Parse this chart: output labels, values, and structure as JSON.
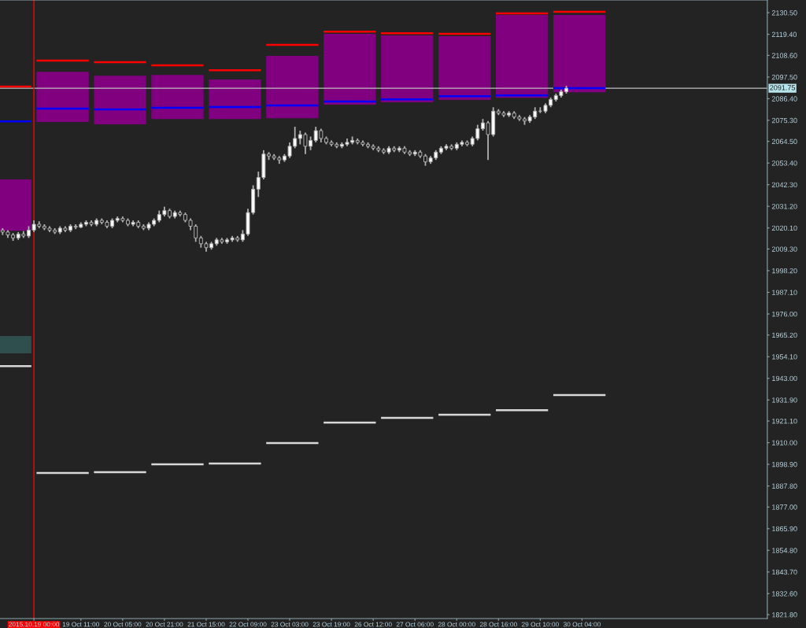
{
  "chart_data": {
    "type": "candlestick",
    "categories": [
      null,
      null,
      null,
      null,
      null,
      null,
      "2015.10.19 00:00",
      null,
      null,
      null,
      null,
      null,
      null,
      null,
      null,
      "19 Oct 11:00",
      null,
      null,
      null,
      null,
      null,
      null,
      null,
      "20 Oct 05:00",
      null,
      null,
      null,
      null,
      null,
      null,
      null,
      "20 Oct 21:00",
      null,
      null,
      null,
      null,
      null,
      null,
      null,
      "21 Oct 15:00",
      null,
      null,
      null,
      null,
      null,
      null,
      null,
      "22 Oct 09:00",
      null,
      null,
      null,
      null,
      null,
      null,
      null,
      "23 Oct 03:00",
      null,
      null,
      null,
      null,
      null,
      null,
      null,
      "23 Oct 19:00",
      null,
      null,
      null,
      null,
      null,
      null,
      null,
      "26 Oct 12:00",
      null,
      null,
      null,
      null,
      null,
      null,
      null,
      "27 Oct 06:00",
      null,
      null,
      null,
      null,
      null,
      null,
      null,
      "28 Oct 00:00",
      null,
      null,
      null,
      null,
      null,
      null,
      null,
      "28 Oct 16:00",
      null,
      null,
      null,
      null,
      null,
      null,
      null,
      "29 Oct 10:00",
      null,
      null,
      null,
      null,
      null,
      null,
      null,
      "30 Oct 04:00",
      null,
      null,
      null,
      null,
      null,
      null,
      null,
      null,
      null,
      null,
      null,
      null,
      null,
      null,
      null,
      null,
      null,
      null,
      null,
      null,
      null,
      null,
      null,
      null,
      null,
      null,
      null,
      null,
      null,
      null,
      null,
      null,
      null,
      null,
      null
    ],
    "ohlc": [
      [
        2019,
        2020,
        2016.5,
        2018
      ],
      [
        2018,
        2019,
        2015,
        2016.5
      ],
      [
        2016.5,
        2017.5,
        2013.5,
        2015
      ],
      [
        2015,
        2018,
        2014,
        2017
      ],
      [
        2017,
        2018.5,
        2015,
        2016
      ],
      [
        2016,
        2021,
        2015,
        2019
      ],
      [
        2019,
        2024,
        2018,
        2022
      ],
      [
        2022,
        2023.5,
        2020,
        2021
      ],
      [
        2021,
        2022,
        2019,
        2020
      ],
      [
        2020,
        2021,
        2018,
        2019
      ],
      [
        2019,
        2020,
        2017,
        2018
      ],
      [
        2018,
        2021,
        2017,
        2020
      ],
      [
        2020,
        2021,
        2018,
        2019
      ],
      [
        2019,
        2022,
        2018,
        2021
      ],
      [
        2021,
        2022,
        2019.5,
        2020.5
      ],
      [
        2020.5,
        2023,
        2020,
        2022
      ],
      [
        2022,
        2024,
        2021,
        2023
      ],
      [
        2023,
        2024,
        2021,
        2022
      ],
      [
        2022,
        2025,
        2021,
        2024
      ],
      [
        2024,
        2025,
        2022,
        2023
      ],
      [
        2023,
        2024,
        2020,
        2021
      ],
      [
        2021,
        2025,
        2020,
        2024
      ],
      [
        2024,
        2026,
        2023,
        2025
      ],
      [
        2025,
        2026,
        2023,
        2024
      ],
      [
        2024,
        2025,
        2021,
        2022
      ],
      [
        2022,
        2024,
        2021,
        2023
      ],
      [
        2023,
        2024,
        2020,
        2021
      ],
      [
        2021,
        2022,
        2019,
        2020
      ],
      [
        2020,
        2023,
        2019,
        2022
      ],
      [
        2022,
        2025,
        2021,
        2024
      ],
      [
        2024,
        2029,
        2023,
        2027
      ],
      [
        2027,
        2031,
        2026,
        2029
      ],
      [
        2029,
        2030,
        2025,
        2026
      ],
      [
        2026,
        2029,
        2025,
        2028
      ],
      [
        2028,
        2029,
        2026,
        2027
      ],
      [
        2027,
        2028,
        2023,
        2024
      ],
      [
        2024,
        2025,
        2019,
        2021
      ],
      [
        2021,
        2022,
        2013,
        2015
      ],
      [
        2015,
        2016,
        2010,
        2012
      ],
      [
        2012,
        2013,
        2008,
        2010
      ],
      [
        2010,
        2013,
        2009,
        2012
      ],
      [
        2012,
        2015,
        2011,
        2014
      ],
      [
        2014,
        2015,
        2012,
        2013
      ],
      [
        2013,
        2015,
        2012,
        2014
      ],
      [
        2014,
        2016,
        2013,
        2015
      ],
      [
        2015,
        2016,
        2013,
        2014
      ],
      [
        2014,
        2019,
        2013,
        2017
      ],
      [
        2017,
        2030,
        2016,
        2028
      ],
      [
        2028,
        2042,
        2027,
        2040
      ],
      [
        2040,
        2049,
        2036,
        2046
      ],
      [
        2046,
        2060,
        2045,
        2058
      ],
      [
        2058,
        2059,
        2055,
        2057
      ],
      [
        2057,
        2058,
        2055,
        2056
      ],
      [
        2056,
        2057,
        2053,
        2055
      ],
      [
        2055,
        2058,
        2054,
        2057
      ],
      [
        2057,
        2064,
        2056,
        2062
      ],
      [
        2062,
        2072,
        2061,
        2066
      ],
      [
        2066,
        2070,
        2063,
        2068
      ],
      [
        2068,
        2069,
        2058,
        2062
      ],
      [
        2062,
        2067,
        2060,
        2065
      ],
      [
        2065,
        2072,
        2064,
        2070
      ],
      [
        2070,
        2071,
        2064,
        2066
      ],
      [
        2066,
        2067,
        2063,
        2064
      ],
      [
        2064,
        2065,
        2062,
        2063
      ],
      [
        2063,
        2064,
        2061,
        2062
      ],
      [
        2062,
        2064,
        2061,
        2063
      ],
      [
        2063,
        2066,
        2062,
        2064
      ],
      [
        2064,
        2067,
        2063,
        2065
      ],
      [
        2065,
        2066,
        2063,
        2064
      ],
      [
        2064,
        2065,
        2062,
        2063
      ],
      [
        2063,
        2064,
        2061,
        2062
      ],
      [
        2062,
        2063,
        2060,
        2061
      ],
      [
        2061,
        2062,
        2059,
        2060
      ],
      [
        2060,
        2061,
        2058,
        2059
      ],
      [
        2059,
        2062,
        2058,
        2061
      ],
      [
        2061,
        2062,
        2059,
        2060
      ],
      [
        2060,
        2062,
        2059,
        2061
      ],
      [
        2061,
        2062,
        2058,
        2059
      ],
      [
        2059,
        2060,
        2057,
        2058
      ],
      [
        2058,
        2060,
        2057,
        2059
      ],
      [
        2059,
        2060,
        2056,
        2057
      ],
      [
        2057,
        2058,
        2052,
        2054
      ],
      [
        2054,
        2057,
        2053,
        2056
      ],
      [
        2056,
        2060,
        2055,
        2059
      ],
      [
        2059,
        2062,
        2058,
        2061
      ],
      [
        2061,
        2063,
        2060,
        2062
      ],
      [
        2062,
        2063,
        2060,
        2061
      ],
      [
        2061,
        2064,
        2060,
        2063
      ],
      [
        2063,
        2065,
        2062,
        2064
      ],
      [
        2064,
        2065,
        2062,
        2063
      ],
      [
        2063,
        2067,
        2062,
        2066
      ],
      [
        2066,
        2073,
        2065,
        2071
      ],
      [
        2071,
        2076,
        2070,
        2074
      ],
      [
        2074,
        2075,
        2055,
        2068
      ],
      [
        2068,
        2082,
        2067,
        2080
      ],
      [
        2080,
        2081,
        2078,
        2079
      ],
      [
        2079,
        2080,
        2077,
        2078
      ],
      [
        2078,
        2080,
        2077,
        2079
      ],
      [
        2079,
        2080,
        2076,
        2077
      ],
      [
        2077,
        2078,
        2075,
        2076
      ],
      [
        2076,
        2077,
        2073,
        2075
      ],
      [
        2075,
        2078,
        2074,
        2077
      ],
      [
        2077,
        2082,
        2076,
        2080
      ],
      [
        2080,
        2082,
        2079,
        2080
      ],
      [
        2080,
        2084,
        2079,
        2083
      ],
      [
        2083,
        2087,
        2082,
        2086
      ],
      [
        2086,
        2089,
        2085,
        2088
      ],
      [
        2088,
        2091,
        2087,
        2090
      ],
      [
        2090,
        2093,
        2089,
        2091.75
      ],
      null,
      null,
      null,
      null,
      null,
      null,
      null,
      null,
      null,
      null,
      null,
      null,
      null,
      null,
      null,
      null,
      null,
      null,
      null,
      null,
      null,
      null,
      null,
      null,
      null,
      null,
      null,
      null,
      null,
      null,
      null,
      null,
      null,
      null,
      null,
      null,
      null,
      null
    ],
    "series": [
      {
        "type": "step",
        "color": "#800080",
        "values": [
          null,
          null,
          null,
          null,
          null,
          null,
          null,
          null,
          null,
          null,
          null,
          null,
          null,
          null,
          null,
          null,
          null,
          null,
          null,
          null,
          null,
          null,
          null,
          null,
          null,
          null,
          null,
          null,
          null,
          null,
          null,
          null,
          null,
          null,
          null,
          null,
          null,
          null,
          null,
          null,
          null,
          null,
          null,
          null,
          null,
          null,
          null,
          null,
          null,
          null,
          null,
          null,
          null,
          null,
          null,
          null,
          null,
          null,
          null,
          null,
          null,
          null,
          null,
          null,
          null,
          null,
          null,
          null,
          null,
          null,
          null,
          null,
          null,
          null,
          null,
          null,
          null,
          null,
          null,
          null,
          null,
          null,
          null,
          null,
          null,
          null,
          null,
          null,
          null,
          null,
          null,
          null,
          null,
          null,
          null,
          null,
          null,
          null,
          null,
          null,
          null,
          null,
          null,
          null,
          null,
          null,
          null,
          null,
          null,
          null,
          null,
          null,
          null,
          null,
          null,
          null,
          null,
          null,
          null,
          null,
          null,
          null,
          null,
          null,
          null,
          null,
          null,
          null,
          null,
          null,
          null,
          null,
          null,
          null,
          null,
          null,
          null,
          null,
          null,
          null,
          null,
          null,
          null,
          null,
          null,
          null,
          null
        ],
        "lower": [
          2018.7,
          2018.7,
          2018.7,
          2018.7,
          2018.7,
          2018.7,
          null,
          2074.4,
          2074.4,
          2074.4,
          2074.4,
          2074.4,
          2074.4,
          2074.4,
          2074.4,
          2074.4,
          2074.4,
          null,
          2073.2,
          2073.2,
          2073.2,
          2073.2,
          2073.2,
          2073.2,
          2073.2,
          2073.2,
          2073.2,
          2073.2,
          null,
          2076.0,
          2076.0,
          2076.0,
          2076.0,
          2076.0,
          2076.0,
          2076.0,
          2076.0,
          2076.0,
          2076.0,
          null,
          2076.0,
          2076.0,
          2076.0,
          2076.0,
          2076.0,
          2076.0,
          2076.0,
          2076.0,
          2076.0,
          2076.0,
          null,
          2076.4,
          2076.4,
          2076.4,
          2076.4,
          2076.4,
          2076.4,
          2076.4,
          2076.4,
          2076.4,
          2076.4,
          null,
          2083.3,
          2083.3,
          2083.3,
          2083.3,
          2083.3,
          2083.3,
          2083.3,
          2083.3,
          2083.3,
          2083.3,
          null,
          2084.5,
          2084.5,
          2084.5,
          2084.5,
          2084.5,
          2084.5,
          2084.5,
          2084.5,
          2084.5,
          2084.5,
          null,
          2085.7,
          2085.7,
          2085.7,
          2085.7,
          2085.7,
          2085.7,
          2085.7,
          2085.7,
          2085.7,
          2085.7,
          null,
          2086.9,
          2086.9,
          2086.9,
          2086.9,
          2086.9,
          2086.9,
          2086.9,
          2086.9,
          2086.9,
          2086.9,
          null,
          2089.7,
          2089.7,
          2089.7,
          2089.7,
          2089.7,
          2089.7,
          2089.7,
          2089.7,
          2089.7,
          2089.7,
          null,
          null,
          null,
          null,
          null,
          null,
          null,
          null,
          null,
          null,
          null,
          null,
          null,
          null,
          null,
          null,
          null,
          null,
          null,
          null,
          null,
          null,
          null,
          null,
          null,
          null,
          null,
          null,
          null,
          null,
          null
        ],
        "upper": [
          2045.0,
          2045.0,
          2045.0,
          2045.0,
          2045.0,
          2045.0,
          null,
          2100.2,
          2100.2,
          2100.2,
          2100.2,
          2100.2,
          2100.2,
          2100.2,
          2100.2,
          2100.2,
          2100.2,
          null,
          2098.2,
          2098.2,
          2098.2,
          2098.2,
          2098.2,
          2098.2,
          2098.2,
          2098.2,
          2098.2,
          2098.2,
          null,
          2098.6,
          2098.6,
          2098.6,
          2098.6,
          2098.6,
          2098.6,
          2098.6,
          2098.6,
          2098.6,
          2098.6,
          null,
          2096.2,
          2096.2,
          2096.2,
          2096.2,
          2096.2,
          2096.2,
          2096.2,
          2096.2,
          2096.2,
          2096.2,
          null,
          2108.3,
          2108.3,
          2108.3,
          2108.3,
          2108.3,
          2108.3,
          2108.3,
          2108.3,
          2108.3,
          2108.3,
          null,
          2119.6,
          2119.6,
          2119.6,
          2119.6,
          2119.6,
          2119.6,
          2119.6,
          2119.6,
          2119.6,
          2119.6,
          null,
          2118.8,
          2118.8,
          2118.8,
          2118.8,
          2118.8,
          2118.8,
          2118.8,
          2118.8,
          2118.8,
          2118.8,
          null,
          2118.4,
          2118.4,
          2118.4,
          2118.4,
          2118.4,
          2118.4,
          2118.4,
          2118.4,
          2118.4,
          2118.4,
          null,
          2129.3,
          2129.3,
          2129.3,
          2129.3,
          2129.3,
          2129.3,
          2129.3,
          2129.3,
          2129.3,
          2129.3,
          null,
          2129.3,
          2129.3,
          2129.3,
          2129.3,
          2129.3,
          2129.3,
          2129.3,
          2129.3,
          2129.3,
          2129.3,
          null,
          null,
          null,
          null,
          null,
          null,
          null,
          null,
          null,
          null,
          null,
          null,
          null,
          null,
          null,
          null,
          null,
          null,
          null,
          null,
          null,
          null,
          null,
          null,
          null,
          null,
          null,
          null,
          null,
          null,
          null
        ]
      },
      {
        "type": "step",
        "color": "#2f4f4f",
        "values": [
          null,
          null,
          null,
          null,
          null,
          null,
          null,
          null,
          null,
          null,
          null,
          null,
          null,
          null,
          null,
          null,
          null,
          null,
          null,
          null,
          null,
          null,
          null,
          null,
          null,
          null,
          null,
          null,
          null,
          null,
          null,
          null,
          null,
          null,
          null,
          null,
          null,
          null,
          null,
          null,
          null,
          null,
          null,
          null,
          null,
          null,
          null,
          null,
          null,
          null,
          null,
          null,
          null,
          null,
          null,
          null,
          null,
          null,
          null,
          null,
          null,
          null,
          null,
          null,
          null,
          null,
          null,
          null,
          null,
          null,
          null,
          null,
          null,
          null,
          null,
          null,
          null,
          null,
          null,
          null,
          null,
          null,
          null,
          null,
          null,
          null,
          null,
          null,
          null,
          null,
          null,
          null,
          null,
          null,
          null,
          null,
          null,
          null,
          null,
          null,
          null,
          null,
          null,
          null,
          null,
          null,
          null,
          null,
          null,
          null,
          null,
          null,
          null,
          null,
          null,
          null,
          null,
          null,
          null,
          null,
          null,
          null,
          null,
          null,
          null,
          null,
          null,
          null,
          null,
          null,
          null,
          null,
          null,
          null,
          null,
          null,
          null,
          null,
          null,
          null,
          null,
          null,
          null,
          null,
          null,
          null,
          null
        ],
        "lower": [
          1955.8,
          1955.8,
          1955.8,
          1955.8,
          1955.8,
          1955.8,
          null,
          null,
          null,
          null,
          null,
          null,
          null,
          null,
          null,
          null,
          null,
          null,
          null,
          null,
          null,
          null,
          null,
          null,
          null,
          null,
          null,
          null,
          null,
          null,
          null,
          null,
          null,
          null,
          null,
          null,
          null,
          null,
          null,
          null,
          null,
          null,
          null,
          null,
          null,
          null,
          null,
          null,
          null,
          null,
          null,
          null,
          null,
          null,
          null,
          null,
          null,
          null,
          null,
          null,
          null,
          null,
          null,
          null,
          null,
          null,
          null,
          null,
          null,
          null,
          null,
          null,
          null,
          null,
          null,
          null,
          null,
          null,
          null,
          null,
          null,
          null,
          null,
          null,
          null,
          null,
          null,
          null,
          null,
          null,
          null,
          null,
          null,
          null,
          null,
          null,
          null,
          null,
          null,
          null,
          null,
          null,
          null,
          null,
          null,
          null,
          null,
          null,
          null,
          null,
          null,
          null,
          null,
          null,
          null,
          null,
          null,
          null,
          null,
          null,
          null,
          null,
          null,
          null,
          null,
          null,
          null,
          null,
          null,
          null,
          null,
          null,
          null,
          null,
          null,
          null,
          null,
          null,
          null,
          null,
          null,
          null,
          null,
          null,
          null,
          null,
          null
        ],
        "upper": [
          1964.7,
          1964.7,
          1964.7,
          1964.7,
          1964.7,
          1964.7,
          null,
          null,
          null,
          null,
          null,
          null,
          null,
          null,
          null,
          null,
          null,
          null,
          null,
          null,
          null,
          null,
          null,
          null,
          null,
          null,
          null,
          null,
          null,
          null,
          null,
          null,
          null,
          null,
          null,
          null,
          null,
          null,
          null,
          null,
          null,
          null,
          null,
          null,
          null,
          null,
          null,
          null,
          null,
          null,
          null,
          null,
          null,
          null,
          null,
          null,
          null,
          null,
          null,
          null,
          null,
          null,
          null,
          null,
          null,
          null,
          null,
          null,
          null,
          null,
          null,
          null,
          null,
          null,
          null,
          null,
          null,
          null,
          null,
          null,
          null,
          null,
          null,
          null,
          null,
          null,
          null,
          null,
          null,
          null,
          null,
          null,
          null,
          null,
          null,
          null,
          null,
          null,
          null,
          null,
          null,
          null,
          null,
          null,
          null,
          null,
          null,
          null,
          null,
          null,
          null,
          null,
          null,
          null,
          null,
          null,
          null,
          null,
          null,
          null,
          null,
          null,
          null,
          null,
          null,
          null,
          null,
          null,
          null,
          null,
          null,
          null,
          null,
          null,
          null,
          null,
          null,
          null,
          null,
          null,
          null,
          null,
          null,
          null,
          null,
          null,
          null
        ]
      },
      {
        "type": "step",
        "color": "#ff0000",
        "values": [
          2092.6,
          2092.6,
          2092.6,
          2092.6,
          2092.6,
          2092.6,
          null,
          2105.9,
          2105.9,
          2105.9,
          2105.9,
          2105.9,
          2105.9,
          2105.9,
          2105.9,
          2105.9,
          2105.9,
          null,
          2105.1,
          2105.1,
          2105.1,
          2105.1,
          2105.1,
          2105.1,
          2105.1,
          2105.1,
          2105.1,
          2105.1,
          null,
          2103.5,
          2103.5,
          2103.5,
          2103.5,
          2103.5,
          2103.5,
          2103.5,
          2103.5,
          2103.5,
          2103.5,
          null,
          2101.0,
          2101.0,
          2101.0,
          2101.0,
          2101.0,
          2101.0,
          2101.0,
          2101.0,
          2101.0,
          2101.0,
          null,
          2114.0,
          2114.0,
          2114.0,
          2114.0,
          2114.0,
          2114.0,
          2114.0,
          2114.0,
          2114.0,
          2114.0,
          null,
          2120.8,
          2120.8,
          2120.8,
          2120.8,
          2120.8,
          2120.8,
          2120.8,
          2120.8,
          2120.8,
          2120.8,
          null,
          2120.0,
          2120.0,
          2120.0,
          2120.0,
          2120.0,
          2120.0,
          2120.0,
          2120.0,
          2120.0,
          2120.0,
          null,
          2119.6,
          2119.6,
          2119.6,
          2119.6,
          2119.6,
          2119.6,
          2119.6,
          2119.6,
          2119.6,
          2119.6,
          null,
          2130.1,
          2130.1,
          2130.1,
          2130.1,
          2130.1,
          2130.1,
          2130.1,
          2130.1,
          2130.1,
          2130.1,
          null,
          2130.9,
          2130.9,
          2130.9,
          2130.9,
          2130.9,
          2130.9,
          2130.9,
          2130.9,
          2130.9,
          2130.9,
          null,
          null,
          null,
          null,
          null,
          null,
          null,
          null,
          null,
          null,
          null,
          null,
          null,
          null,
          null,
          null,
          null,
          null,
          null,
          null,
          null,
          null,
          null,
          null,
          null,
          null,
          null,
          null,
          null,
          null,
          null
        ]
      },
      {
        "type": "step",
        "color": "#0000ff",
        "values": [
          2074.8,
          2074.8,
          2074.8,
          2074.8,
          2074.8,
          2074.8,
          null,
          2081.3,
          2081.3,
          2081.3,
          2081.3,
          2081.3,
          2081.3,
          2081.3,
          2081.3,
          2081.3,
          2081.3,
          null,
          2080.9,
          2080.9,
          2080.9,
          2080.9,
          2080.9,
          2080.9,
          2080.9,
          2080.9,
          2080.9,
          2080.9,
          null,
          2081.7,
          2081.7,
          2081.7,
          2081.7,
          2081.7,
          2081.7,
          2081.7,
          2081.7,
          2081.7,
          2081.7,
          null,
          2082.1,
          2082.1,
          2082.1,
          2082.1,
          2082.1,
          2082.1,
          2082.1,
          2082.1,
          2082.1,
          2082.1,
          null,
          2082.9,
          2082.9,
          2082.9,
          2082.9,
          2082.9,
          2082.9,
          2082.9,
          2082.9,
          2082.9,
          2082.9,
          null,
          2084.9,
          2084.9,
          2084.9,
          2084.9,
          2084.9,
          2084.9,
          2084.9,
          2084.9,
          2084.9,
          2084.9,
          null,
          2086.1,
          2086.1,
          2086.1,
          2086.1,
          2086.1,
          2086.1,
          2086.1,
          2086.1,
          2086.1,
          2086.1,
          null,
          2087.7,
          2087.7,
          2087.7,
          2087.7,
          2087.7,
          2087.7,
          2087.7,
          2087.7,
          2087.7,
          2087.7,
          null,
          2088.1,
          2088.1,
          2088.1,
          2088.1,
          2088.1,
          2088.1,
          2088.1,
          2088.1,
          2088.1,
          2088.1,
          null,
          2091.8,
          2091.8,
          2091.8,
          2091.8,
          2091.8,
          2091.8,
          2091.8,
          2091.8,
          2091.8,
          2091.8,
          null,
          null,
          null,
          null,
          null,
          null,
          null,
          null,
          null,
          null,
          null,
          null,
          null,
          null,
          null,
          null,
          null,
          null,
          null,
          null,
          null,
          null,
          null,
          null,
          null,
          null,
          null,
          null,
          null,
          null,
          null
        ]
      },
      {
        "type": "step",
        "color": "#d8d8d8",
        "values": [
          1949.3,
          1949.3,
          1949.3,
          1949.3,
          1949.3,
          1949.3,
          null,
          1894.5,
          1894.5,
          1894.5,
          1894.5,
          1894.5,
          1894.5,
          1894.5,
          1894.5,
          1894.5,
          1894.5,
          null,
          1894.9,
          1894.9,
          1894.9,
          1894.9,
          1894.9,
          1894.9,
          1894.9,
          1894.9,
          1894.9,
          1894.9,
          null,
          1898.9,
          1898.9,
          1898.9,
          1898.9,
          1898.9,
          1898.9,
          1898.9,
          1898.9,
          1898.9,
          1898.9,
          null,
          1899.3,
          1899.3,
          1899.3,
          1899.3,
          1899.3,
          1899.3,
          1899.3,
          1899.3,
          1899.3,
          1899.3,
          null,
          1909.8,
          1909.8,
          1909.8,
          1909.8,
          1909.8,
          1909.8,
          1909.8,
          1909.8,
          1909.8,
          1909.8,
          null,
          1920.3,
          1920.3,
          1920.3,
          1920.3,
          1920.3,
          1920.3,
          1920.3,
          1920.3,
          1920.3,
          1920.3,
          null,
          1922.7,
          1922.7,
          1922.7,
          1922.7,
          1922.7,
          1922.7,
          1922.7,
          1922.7,
          1922.7,
          1922.7,
          null,
          1924.3,
          1924.3,
          1924.3,
          1924.3,
          1924.3,
          1924.3,
          1924.3,
          1924.3,
          1924.3,
          1924.3,
          null,
          1926.7,
          1926.7,
          1926.7,
          1926.7,
          1926.7,
          1926.7,
          1926.7,
          1926.7,
          1926.7,
          1926.7,
          null,
          1934.4,
          1934.4,
          1934.4,
          1934.4,
          1934.4,
          1934.4,
          1934.4,
          1934.4,
          1934.4,
          1934.4,
          null,
          null,
          null,
          null,
          null,
          null,
          null,
          null,
          null,
          null,
          null,
          null,
          null,
          null,
          null,
          null,
          null,
          null,
          null,
          null,
          null,
          null,
          null,
          null,
          null,
          null,
          null,
          null,
          null,
          null,
          null
        ]
      }
    ],
    "ylim": [
      1819.8,
      2137.0
    ],
    "yticks": [
      {
        "value": 2130.5,
        "label": "2130.50"
      },
      {
        "value": 2119.4,
        "label": "2119.40"
      },
      {
        "value": 2108.6,
        "label": "2108.60"
      },
      {
        "value": 2097.5,
        "label": "2097.50"
      },
      {
        "value": 2086.4,
        "label": "2086.40"
      },
      {
        "value": 2075.3,
        "label": "2075.30"
      },
      {
        "value": 2064.5,
        "label": "2064.50"
      },
      {
        "value": 2053.4,
        "label": "2053.40"
      },
      {
        "value": 2042.3,
        "label": "2042.30"
      },
      {
        "value": 2031.2,
        "label": "2031.20"
      },
      {
        "value": 2020.1,
        "label": "2020.10"
      },
      {
        "value": 2009.3,
        "label": "2009.30"
      },
      {
        "value": 1998.2,
        "label": "1998.20"
      },
      {
        "value": 1987.1,
        "label": "1987.10"
      },
      {
        "value": 1976.0,
        "label": "1976.00"
      },
      {
        "value": 1965.2,
        "label": "1965.20"
      },
      {
        "value": 1954.1,
        "label": "1954.10"
      },
      {
        "value": 1943.0,
        "label": "1943.00"
      },
      {
        "value": 1931.9,
        "label": "1931.90"
      },
      {
        "value": 1921.1,
        "label": "1921.10"
      },
      {
        "value": 1910.0,
        "label": "1910.00"
      },
      {
        "value": 1898.9,
        "label": "1898.90"
      },
      {
        "value": 1887.8,
        "label": "1887.80"
      },
      {
        "value": 1877.0,
        "label": "1877.00"
      },
      {
        "value": 1865.9,
        "label": "1865.90"
      },
      {
        "value": 1854.8,
        "label": "1854.80"
      },
      {
        "value": 1843.7,
        "label": "1843.70"
      },
      {
        "value": 1832.6,
        "label": "1832.60"
      },
      {
        "value": 1821.8,
        "label": "1821.80"
      }
    ],
    "ref_lines": [
      {
        "axis": "y",
        "value": 2091.75,
        "label": "2091.75",
        "color": "#c0c0c0"
      },
      {
        "axis": "x",
        "value": "2015.10.19 00:00",
        "color": "#ff0000"
      }
    ],
    "grid": false
  }
}
